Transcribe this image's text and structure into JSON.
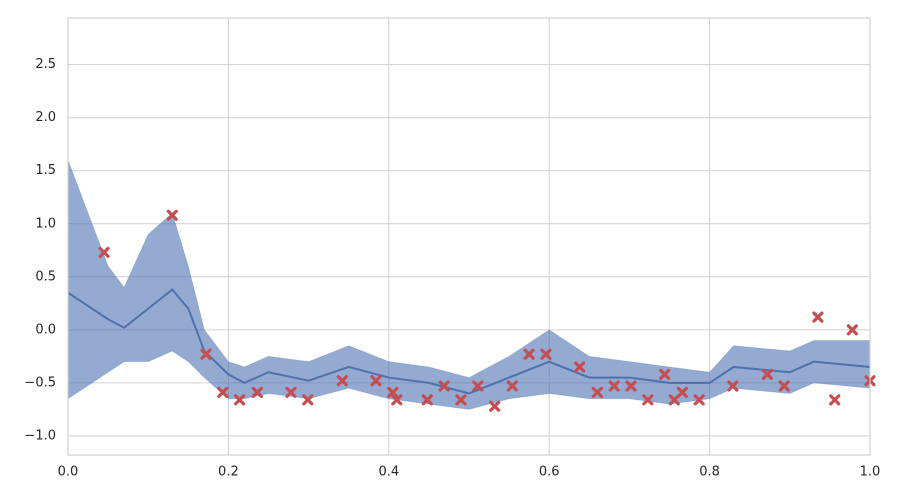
{
  "chart_data": {
    "type": "line",
    "xlim": [
      0,
      1
    ],
    "ylim": [
      -1.18,
      2.94
    ],
    "xticks": [
      {
        "value": 0,
        "label": "0.0"
      },
      0.2,
      0.4,
      0.6,
      0.8,
      {
        "value": 1,
        "label": "1.0"
      }
    ],
    "yticks": [
      {
        "value": -1,
        "label": "−1.0"
      },
      {
        "value": -0.5,
        "label": "−0.5"
      },
      {
        "value": 0,
        "label": "0.0"
      },
      0.5,
      {
        "value": 1,
        "label": "1.0"
      },
      1.5,
      {
        "value": 2,
        "label": "2.0"
      },
      2.5
    ],
    "grid": true,
    "line": {
      "color": "#4c72b0",
      "x": [
        0,
        0.05,
        0.07,
        0.1,
        0.13,
        0.15,
        0.17,
        0.2,
        0.22,
        0.25,
        0.3,
        0.35,
        0.4,
        0.45,
        0.5,
        0.55,
        0.6,
        0.65,
        0.7,
        0.75,
        0.8,
        0.83,
        0.9,
        0.93,
        1.0
      ],
      "values": [
        0.35,
        0.1,
        0.02,
        0.2,
        0.38,
        0.2,
        -0.2,
        -0.42,
        -0.5,
        -0.4,
        -0.48,
        -0.35,
        -0.45,
        -0.5,
        -0.6,
        -0.45,
        -0.3,
        -0.45,
        -0.45,
        -0.5,
        -0.5,
        -0.35,
        -0.4,
        -0.3,
        -0.35
      ],
      "lower": [
        -0.65,
        -0.4,
        -0.3,
        -0.3,
        -0.2,
        -0.3,
        -0.45,
        -0.65,
        -0.65,
        -0.6,
        -0.65,
        -0.55,
        -0.65,
        -0.7,
        -0.75,
        -0.65,
        -0.6,
        -0.65,
        -0.65,
        -0.7,
        -0.65,
        -0.55,
        -0.6,
        -0.5,
        -0.55
      ],
      "upper": [
        1.6,
        0.6,
        0.4,
        0.9,
        1.1,
        0.6,
        0.0,
        -0.3,
        -0.35,
        -0.25,
        -0.3,
        -0.15,
        -0.3,
        -0.35,
        -0.45,
        -0.25,
        0.0,
        -0.25,
        -0.3,
        -0.35,
        -0.4,
        -0.15,
        -0.2,
        -0.1,
        -0.1
      ]
    },
    "scatter": {
      "color": "#c44e52",
      "x": [
        0.045,
        0.13,
        0.172,
        0.193,
        0.214,
        0.236,
        0.278,
        0.299,
        0.342,
        0.384,
        0.405,
        0.41,
        0.448,
        0.469,
        0.49,
        0.511,
        0.532,
        0.554,
        0.575,
        0.596,
        0.638,
        0.66,
        0.681,
        0.702,
        0.723,
        0.744,
        0.756,
        0.766,
        0.787,
        0.829,
        0.872,
        0.893,
        0.935,
        0.956,
        0.978,
        1.0
      ],
      "values": [
        0.73,
        1.08,
        -0.23,
        -0.59,
        -0.66,
        -0.59,
        -0.59,
        -0.66,
        -0.48,
        -0.48,
        -0.59,
        -0.66,
        -0.66,
        -0.53,
        -0.66,
        -0.53,
        -0.72,
        -0.53,
        -0.23,
        -0.23,
        -0.35,
        -0.59,
        -0.53,
        -0.53,
        -0.66,
        -0.42,
        -0.66,
        -0.59,
        -0.66,
        -0.53,
        -0.42,
        -0.53,
        0.12,
        -0.66,
        0.0,
        -0.48
      ]
    }
  }
}
